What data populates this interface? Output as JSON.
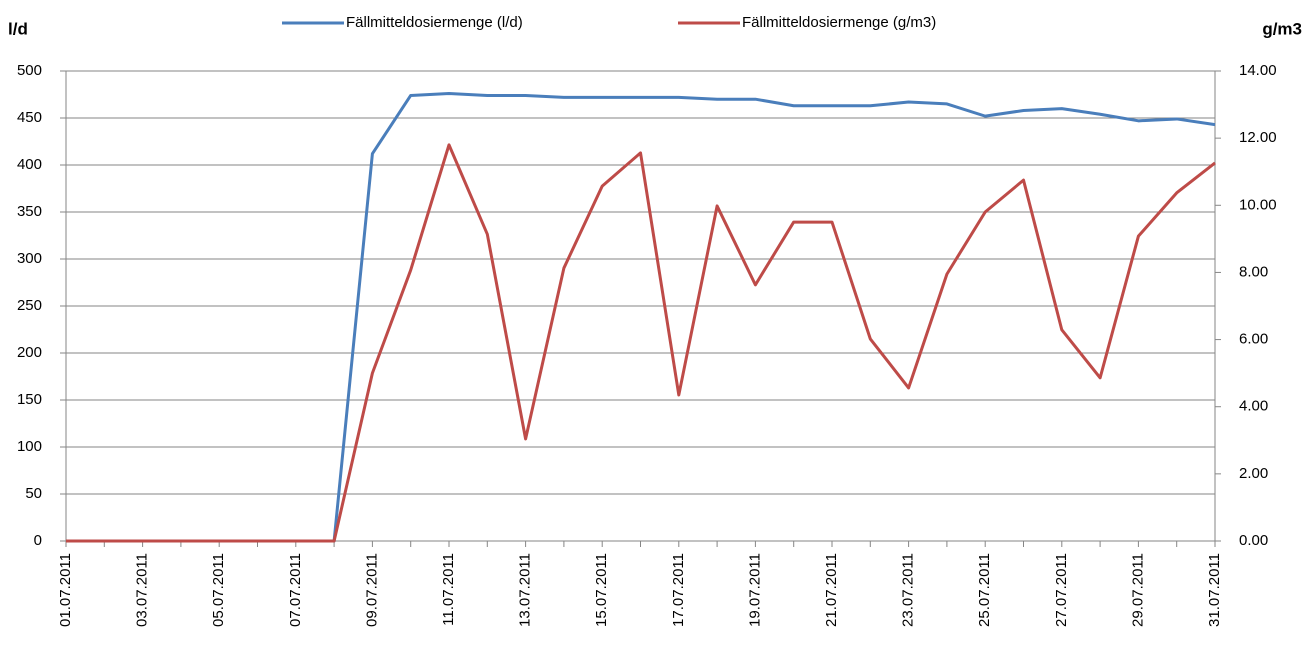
{
  "chart_data": {
    "type": "line",
    "y_label": "l/d",
    "y2_label": "g/m3",
    "categories": [
      "01.07.2011",
      null,
      "03.07.2011",
      null,
      "05.07.2011",
      null,
      "07.07.2011",
      null,
      "09.07.2011",
      null,
      "11.07.2011",
      null,
      "13.07.2011",
      null,
      "15.07.2011",
      null,
      "17.07.2011",
      null,
      "19.07.2011",
      null,
      "21.07.2011",
      null,
      "23.07.2011",
      null,
      "25.07.2011",
      null,
      "27.07.2011",
      null,
      "29.07.2011",
      null,
      "31.07.2011"
    ],
    "series": [
      {
        "name": "Fällmitteldosiermenge (l/d)",
        "color": "#4a7ebb",
        "values": [
          0,
          0,
          0,
          0,
          0,
          0,
          0,
          0,
          412,
          474,
          476,
          474,
          474,
          472,
          472,
          472,
          472,
          470,
          470,
          463,
          463,
          463,
          467,
          465,
          452,
          458,
          460,
          454,
          447,
          449,
          443
        ]
      },
      {
        "name": "Fällmitteldosiermenge (g/m3)",
        "color": "#be4b48",
        "axis": "y2",
        "values": [
          0,
          0,
          0,
          0,
          0,
          0,
          0,
          0,
          5.0,
          8.07,
          11.8,
          9.14,
          3.04,
          8.13,
          10.57,
          11.56,
          4.35,
          9.98,
          7.63,
          9.5,
          9.5,
          6.02,
          4.56,
          7.95,
          9.8,
          10.75,
          6.29,
          4.86,
          9.08,
          10.37,
          11.26
        ]
      }
    ],
    "ylim": [
      0,
      500
    ],
    "yticks": [
      0,
      50,
      100,
      150,
      200,
      250,
      300,
      350,
      400,
      450,
      500
    ],
    "y2lim": [
      0,
      14
    ],
    "y2ticks": [
      {
        "value": 0,
        "label": "0.00"
      },
      {
        "value": 2,
        "label": "2.00"
      },
      {
        "value": 4,
        "label": "4.00"
      },
      {
        "value": 6,
        "label": "6.00"
      },
      {
        "value": 8,
        "label": "8.00"
      },
      {
        "value": 10,
        "label": "10.00"
      },
      {
        "value": 12,
        "label": "12.00"
      },
      {
        "value": 14,
        "label": "14.00"
      }
    ],
    "grid": true,
    "legend": "top"
  }
}
